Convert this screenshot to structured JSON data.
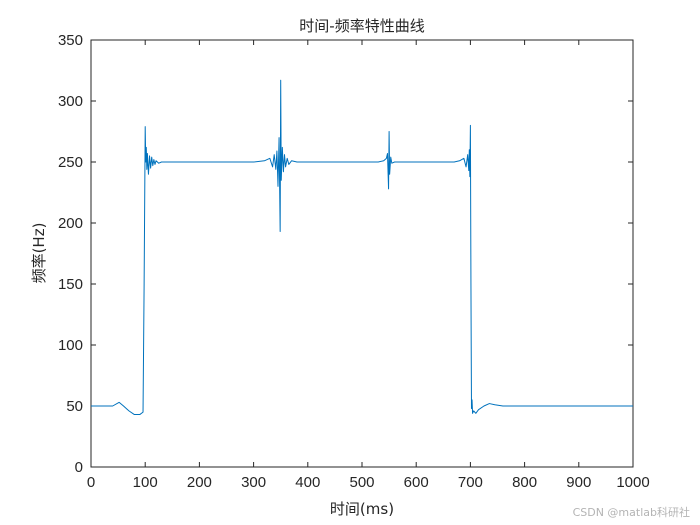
{
  "chart_data": {
    "type": "line",
    "title": "时间-频率特性曲线",
    "xlabel": "时间(ms)",
    "ylabel": "频率(Hz)",
    "xlim": [
      0,
      1000
    ],
    "ylim": [
      0,
      350
    ],
    "xticks": [
      0,
      100,
      200,
      300,
      400,
      500,
      600,
      700,
      800,
      900,
      1000
    ],
    "yticks": [
      0,
      50,
      100,
      150,
      200,
      250,
      300,
      350
    ],
    "grid": false,
    "line_color": "#0072BD",
    "series": [
      {
        "x": [
          0,
          20,
          40,
          52,
          60,
          70,
          80,
          90,
          96,
          98,
          100,
          101,
          102,
          103,
          104,
          106,
          108,
          110,
          112,
          114,
          116,
          118,
          120,
          125,
          130,
          140,
          160,
          200,
          260,
          300,
          320,
          330,
          335,
          338,
          341,
          343,
          345,
          347,
          349,
          350,
          351,
          353,
          355,
          357,
          359,
          362,
          365,
          370,
          380,
          400,
          450,
          500,
          530,
          540,
          545,
          547,
          549,
          550,
          551,
          553,
          555,
          560,
          570,
          600,
          650,
          670,
          680,
          688,
          692,
          695,
          697,
          698,
          699,
          700,
          701,
          702,
          703,
          704,
          706,
          710,
          715,
          725,
          735,
          745,
          760,
          800,
          900,
          1000
        ],
        "y": [
          50,
          50,
          50,
          53,
          50,
          46,
          43,
          43,
          45,
          150,
          279,
          250,
          262,
          244,
          257,
          240,
          255,
          245,
          254,
          247,
          252,
          248,
          251,
          249,
          250,
          250,
          250,
          250,
          250,
          250,
          251,
          253,
          246,
          256,
          244,
          259,
          230,
          270,
          193,
          317,
          235,
          262,
          242,
          256,
          246,
          253,
          248,
          251,
          250,
          250,
          250,
          250,
          250,
          251,
          253,
          257,
          228,
          275,
          240,
          254,
          249,
          250,
          250,
          250,
          250,
          250,
          251,
          253,
          246,
          256,
          243,
          260,
          238,
          280,
          150,
          48,
          55,
          44,
          46,
          44,
          47,
          50,
          52,
          51,
          50,
          50,
          50,
          50
        ]
      }
    ]
  },
  "watermark": "CSDN @matlab科研社"
}
